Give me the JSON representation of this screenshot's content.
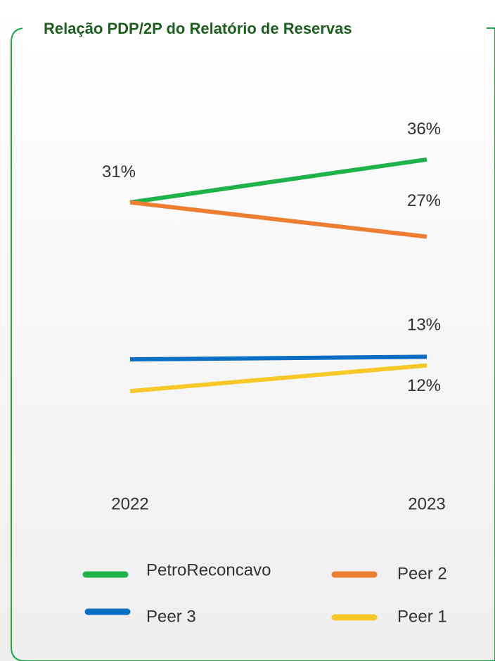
{
  "chart_data": {
    "type": "line",
    "title": "Relação PDP/2P do Relatório de Reservas",
    "x": [
      "2022",
      "2023"
    ],
    "ylim": [
      0,
      40
    ],
    "series": [
      {
        "name": "PetroReconcavo",
        "color": "#1fb14a",
        "values": [
          31,
          36
        ],
        "value_labels": [
          "31%",
          "36%"
        ]
      },
      {
        "name": "Peer 2",
        "color": "#ed7d31",
        "values": [
          31,
          27
        ],
        "value_labels": [
          null,
          "27%"
        ]
      },
      {
        "name": "Peer 3",
        "color": "#0a6fc2",
        "values": [
          12.7,
          13
        ],
        "value_labels": [
          null,
          "13%"
        ]
      },
      {
        "name": "Peer 1",
        "color": "#f7c928",
        "values": [
          9,
          12
        ],
        "value_labels": [
          null,
          "12%"
        ]
      }
    ]
  }
}
